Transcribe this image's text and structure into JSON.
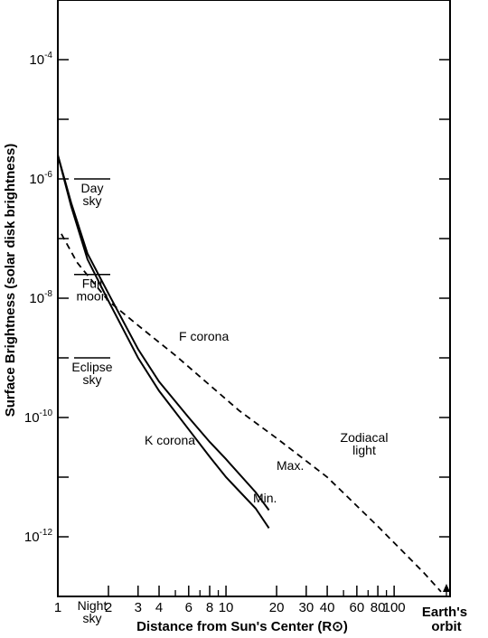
{
  "chart_data": {
    "type": "line",
    "title": "",
    "xlabel": "Distance from Sun's Center (R⊙)",
    "ylabel": "Surface Brightness (solar disk brightness)",
    "x_scale": "log",
    "y_scale": "log",
    "xlim": [
      1,
      215
    ],
    "ylim": [
      1e-13,
      0.001
    ],
    "grid": false,
    "x_ticks": [
      {
        "value": 1,
        "label": "1"
      },
      {
        "value": 2,
        "label": "2"
      },
      {
        "value": 3,
        "label": "3"
      },
      {
        "value": 4,
        "label": "4"
      },
      {
        "value": 6,
        "label": "6"
      },
      {
        "value": 8,
        "label": "8"
      },
      {
        "value": 10,
        "label": "10"
      },
      {
        "value": 20,
        "label": "20"
      },
      {
        "value": 30,
        "label": "30"
      },
      {
        "value": 40,
        "label": "40"
      },
      {
        "value": 60,
        "label": "60"
      },
      {
        "value": 80,
        "label": "80"
      },
      {
        "value": 100,
        "label": "100"
      }
    ],
    "x_minor_ticks": [
      5,
      7,
      9,
      50,
      70,
      90
    ],
    "y_major_ticks": [
      {
        "exp": -4,
        "base": "10",
        "sup": "-4"
      },
      {
        "exp": -6,
        "base": "10",
        "sup": "-6"
      },
      {
        "exp": -8,
        "base": "10",
        "sup": "-8"
      },
      {
        "exp": -10,
        "base": "10",
        "sup": "-10"
      },
      {
        "exp": -12,
        "base": "10",
        "sup": "-12"
      }
    ],
    "y_minor_ticks": [
      -3,
      -5,
      -7,
      -9,
      -11,
      -13
    ],
    "earth_orbit": {
      "x": 215,
      "label_line1": "Earth's",
      "label_line2": "orbit"
    },
    "series": [
      {
        "name": "Max.",
        "style": "solid",
        "points": [
          [
            1.0,
            2.5e-06
          ],
          [
            1.2,
            4e-07
          ],
          [
            1.5,
            5.6e-08
          ],
          [
            2.0,
            1.2e-08
          ],
          [
            3.0,
            1.4e-09
          ],
          [
            4.0,
            4e-10
          ],
          [
            6.0,
            1e-10
          ],
          [
            8.0,
            3.9e-11
          ],
          [
            10.0,
            2e-11
          ],
          [
            15.0,
            5.6e-12
          ],
          [
            18.0,
            2.8e-12
          ]
        ]
      },
      {
        "name": "Min.",
        "style": "solid",
        "points": [
          [
            1.0,
            2.5e-06
          ],
          [
            1.2,
            3.5e-07
          ],
          [
            1.5,
            4.5e-08
          ],
          [
            2.0,
            9e-09
          ],
          [
            3.0,
            1e-09
          ],
          [
            4.0,
            2.8e-10
          ],
          [
            6.0,
            6.3e-11
          ],
          [
            8.0,
            2.2e-11
          ],
          [
            10.0,
            1e-11
          ],
          [
            15.0,
            3e-12
          ],
          [
            18.0,
            1.4e-12
          ]
        ]
      },
      {
        "name": "F corona",
        "style": "dashed",
        "points": [
          [
            1.05,
            1.2e-07
          ],
          [
            1.3,
            4e-08
          ],
          [
            2.0,
            9e-09
          ],
          [
            3.0,
            3.5e-09
          ],
          [
            5.0,
            1.1e-09
          ],
          [
            8.0,
            3.5e-10
          ],
          [
            12.0,
            1.3e-10
          ],
          [
            20.0,
            4.5e-11
          ],
          [
            40.0,
            1e-11
          ],
          [
            80.0,
            1.5e-12
          ],
          [
            150.0,
            2.5e-13
          ],
          [
            190.0,
            1.2e-13
          ]
        ]
      }
    ],
    "zodiacal_gap": [
      14.5,
      20.0
    ],
    "reference_levels": [
      {
        "name": "Day sky",
        "line1": "Day",
        "line2": "sky",
        "value": 1e-06
      },
      {
        "name": "Full moon",
        "line1": "Full",
        "line2": "moon",
        "value": 2.5e-08
      },
      {
        "name": "Eclipse sky",
        "line1": "Eclipse",
        "line2": "sky",
        "value": 1e-09
      },
      {
        "name": "Night sky",
        "line1": "Night",
        "line2": "sky",
        "value": 1e-13
      }
    ],
    "labels": {
      "k_corona": "K corona",
      "f_corona": "F corona",
      "zodiacal_line1": "Zodiacal",
      "zodiacal_line2": "light",
      "max": "Max.",
      "min": "Min."
    }
  }
}
